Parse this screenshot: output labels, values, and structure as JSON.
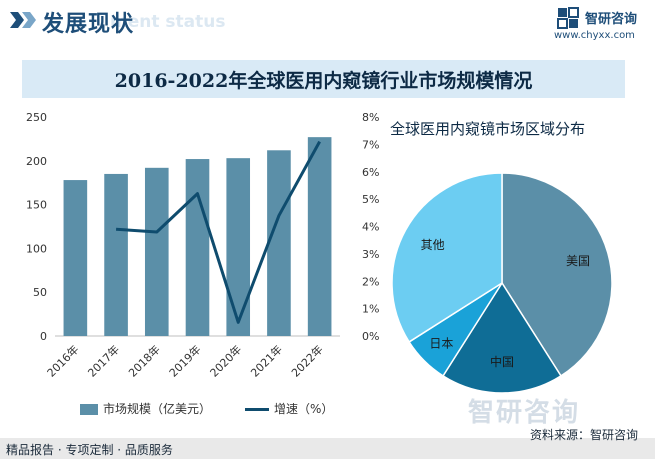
{
  "header": {
    "title": "发展现状",
    "subtitle": "ment status"
  },
  "brand": {
    "name": "智研咨询",
    "url": "www.chyxx.com",
    "watermark": "智研咨询"
  },
  "main_title": "2016-2022年全球医用内窥镜行业市场规模情况",
  "pie_title": "全球医用内窥镜市场区域分布",
  "legend": {
    "bar": "市场规模（亿美元）",
    "line": "增速（%）"
  },
  "footer": {
    "left": "精品报告 · 专项定制 · 品质服务",
    "right": "资料来源：智研咨询"
  },
  "colors": {
    "bar": "#5b8fa8",
    "line": "#0f4c6e",
    "brand": "#1e4e79"
  },
  "chart_data": [
    {
      "type": "bar",
      "categories": [
        "2016年",
        "2017年",
        "2018年",
        "2019年",
        "2020年",
        "2021年",
        "2022年"
      ],
      "series": [
        {
          "name": "市场规模（亿美元）",
          "type": "bar",
          "axis": "left",
          "values": [
            178,
            185,
            192,
            202,
            203,
            212,
            227
          ]
        },
        {
          "name": "增速（%）",
          "type": "line",
          "axis": "right",
          "values": [
            null,
            3.9,
            3.8,
            5.2,
            0.5,
            4.4,
            7.1
          ]
        }
      ],
      "y_left": {
        "ticks": [
          "0",
          "50",
          "100",
          "150",
          "200",
          "250"
        ],
        "lim": [
          0,
          250
        ]
      },
      "y_right": {
        "ticks": [
          "0%",
          "1%",
          "2%",
          "3%",
          "4%",
          "5%",
          "6%",
          "7%",
          "8%"
        ],
        "lim": [
          0,
          8
        ]
      },
      "grid": false,
      "legend_position": "bottom"
    },
    {
      "type": "pie",
      "title": "全球医用内窥镜市场区域分布",
      "labels": [
        "美国",
        "中国",
        "日本",
        "其他"
      ],
      "values": [
        41,
        18,
        7,
        34
      ],
      "colors": [
        "#5b8fa8",
        "#0f6d96",
        "#1aa2d8",
        "#6ccdf2"
      ]
    }
  ]
}
